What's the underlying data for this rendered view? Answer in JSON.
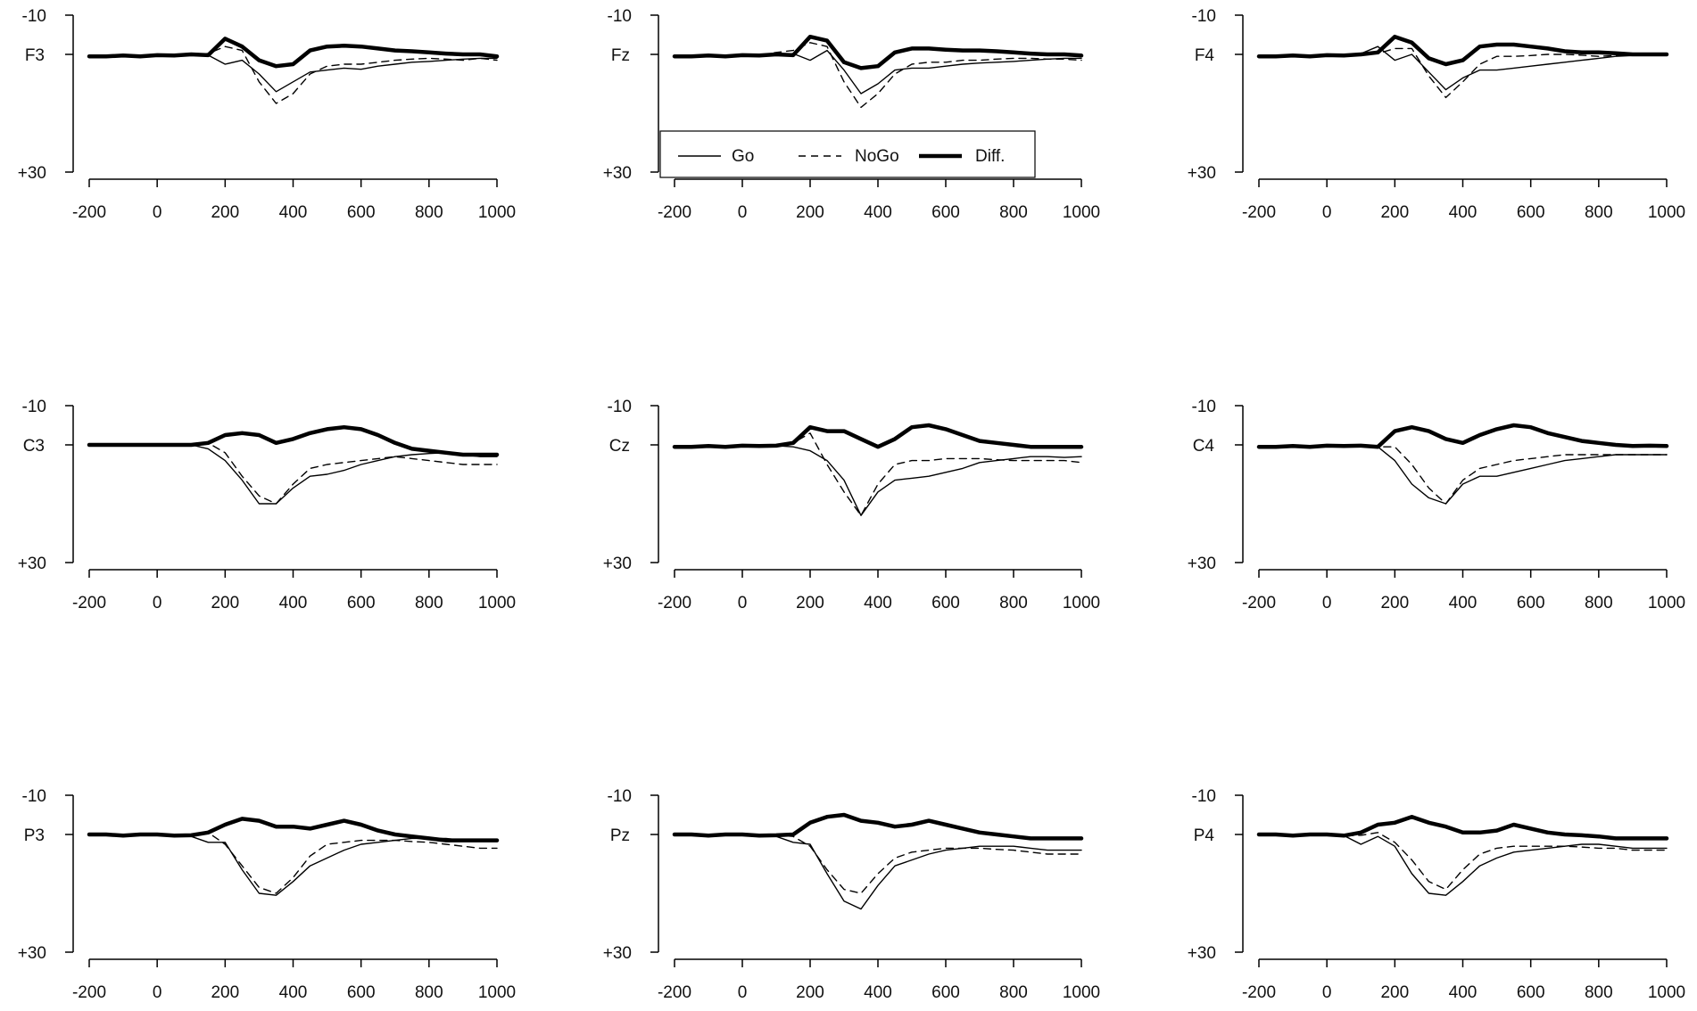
{
  "chart_data": {
    "type": "line",
    "x_ticks": [
      -200,
      0,
      200,
      400,
      600,
      800,
      1000
    ],
    "xlim": [
      -200,
      1000
    ],
    "y_tick_labels": [
      "-10",
      "+30"
    ],
    "ylim": [
      -10,
      30
    ],
    "y_reversed": true,
    "grid": false,
    "legend": {
      "placement": "in the Fz panel, lower left",
      "entries": [
        {
          "label": "Go",
          "style": "solid"
        },
        {
          "label": "NoGo",
          "style": "dashed"
        },
        {
          "label": "Diff.",
          "style": "thick"
        }
      ]
    },
    "x": [
      -200,
      -150,
      -100,
      -50,
      0,
      50,
      100,
      150,
      200,
      250,
      300,
      350,
      400,
      450,
      500,
      550,
      600,
      650,
      700,
      750,
      800,
      850,
      900,
      950,
      1000
    ],
    "panels": [
      {
        "channel": "F3",
        "series": [
          {
            "name": "Go",
            "values": [
              0.5,
              0.5,
              0.3,
              0.5,
              0.2,
              0.3,
              0.0,
              0.2,
              2.5,
              1.5,
              5.0,
              9.5,
              7.0,
              4.5,
              4.0,
              3.5,
              3.8,
              3.0,
              2.5,
              2.0,
              1.8,
              1.5,
              1.2,
              1.0,
              1.0
            ]
          },
          {
            "name": "NoGo",
            "values": [
              0.5,
              0.5,
              0.3,
              0.5,
              0.2,
              0.3,
              0.0,
              -0.2,
              -2.0,
              -1.0,
              7.0,
              12.5,
              10.0,
              5.0,
              3.0,
              2.5,
              2.5,
              2.0,
              1.5,
              1.2,
              1.0,
              1.2,
              1.5,
              1.0,
              1.5
            ]
          },
          {
            "name": "Diff.",
            "values": [
              0.5,
              0.5,
              0.3,
              0.5,
              0.2,
              0.3,
              0.0,
              0.2,
              -4.0,
              -2.0,
              1.5,
              3.0,
              2.5,
              -1.0,
              -2.0,
              -2.2,
              -2.0,
              -1.5,
              -1.0,
              -0.8,
              -0.5,
              -0.2,
              0.0,
              0.0,
              0.5
            ]
          }
        ]
      },
      {
        "channel": "Fz",
        "series": [
          {
            "name": "Go",
            "values": [
              0.5,
              0.5,
              0.3,
              0.5,
              0.2,
              0.3,
              0.0,
              -0.2,
              1.5,
              -1.0,
              4.0,
              10.0,
              7.5,
              4.0,
              3.5,
              3.5,
              3.0,
              2.5,
              2.2,
              2.0,
              1.8,
              1.5,
              1.2,
              1.0,
              1.0
            ]
          },
          {
            "name": "NoGo",
            "values": [
              0.5,
              0.5,
              0.3,
              0.5,
              0.2,
              0.3,
              -0.5,
              -1.0,
              -3.0,
              -2.0,
              7.0,
              13.5,
              10.0,
              5.0,
              2.5,
              2.0,
              2.0,
              1.5,
              1.5,
              1.2,
              1.0,
              1.0,
              1.2,
              1.2,
              1.5
            ]
          },
          {
            "name": "Diff.",
            "values": [
              0.5,
              0.5,
              0.3,
              0.5,
              0.2,
              0.3,
              0.0,
              0.2,
              -4.5,
              -3.5,
              2.0,
              3.5,
              3.0,
              -0.5,
              -1.5,
              -1.5,
              -1.2,
              -1.0,
              -1.0,
              -0.8,
              -0.5,
              -0.2,
              0.0,
              0.0,
              0.3
            ]
          }
        ]
      },
      {
        "channel": "F4",
        "series": [
          {
            "name": "Go",
            "values": [
              0.5,
              0.5,
              0.3,
              0.5,
              0.2,
              0.3,
              -0.2,
              -2.0,
              1.5,
              0.0,
              4.5,
              9.0,
              6.0,
              4.0,
              4.0,
              3.5,
              3.0,
              2.5,
              2.0,
              1.5,
              1.0,
              0.5,
              0.3,
              0.2,
              0.2
            ]
          },
          {
            "name": "NoGo",
            "values": [
              0.5,
              0.5,
              0.3,
              0.5,
              0.2,
              0.3,
              0.0,
              -0.2,
              -1.5,
              -1.5,
              5.5,
              11.0,
              7.0,
              2.5,
              0.5,
              0.5,
              0.3,
              0.0,
              0.0,
              0.2,
              0.5,
              0.3,
              0.2,
              0.2,
              0.2
            ]
          },
          {
            "name": "Diff.",
            "values": [
              0.5,
              0.5,
              0.3,
              0.5,
              0.2,
              0.3,
              0.0,
              -0.5,
              -4.5,
              -3.0,
              1.0,
              2.5,
              1.5,
              -2.0,
              -2.5,
              -2.5,
              -2.0,
              -1.5,
              -0.8,
              -0.5,
              -0.5,
              -0.3,
              0.0,
              0.0,
              0.0
            ]
          }
        ]
      },
      {
        "channel": "C3",
        "series": [
          {
            "name": "Go",
            "values": [
              0.0,
              0.0,
              0.0,
              0.0,
              0.0,
              0.0,
              0.0,
              1.0,
              4.0,
              9.0,
              15.0,
              15.0,
              11.0,
              8.0,
              7.5,
              6.5,
              5.0,
              4.0,
              3.0,
              2.5,
              2.2,
              2.0,
              2.5,
              3.0,
              3.0
            ]
          },
          {
            "name": "NoGo",
            "values": [
              0.0,
              0.0,
              0.0,
              0.0,
              0.0,
              0.0,
              0.0,
              -0.5,
              2.0,
              8.0,
              13.0,
              15.0,
              10.0,
              6.0,
              5.0,
              4.5,
              4.0,
              3.5,
              3.0,
              3.5,
              4.0,
              4.5,
              5.0,
              5.0,
              5.0
            ]
          },
          {
            "name": "Diff.",
            "values": [
              0.0,
              0.0,
              0.0,
              0.0,
              0.0,
              0.0,
              0.0,
              -0.5,
              -2.5,
              -3.0,
              -2.5,
              -0.5,
              -1.5,
              -3.0,
              -4.0,
              -4.5,
              -4.0,
              -2.5,
              -0.5,
              1.0,
              1.5,
              2.0,
              2.5,
              2.5,
              2.5
            ]
          }
        ]
      },
      {
        "channel": "Cz",
        "series": [
          {
            "name": "Go",
            "values": [
              0.5,
              0.5,
              0.3,
              0.5,
              0.2,
              0.3,
              0.2,
              0.5,
              1.5,
              4.0,
              9.0,
              18.0,
              12.0,
              9.0,
              8.5,
              8.0,
              7.0,
              6.0,
              4.5,
              4.0,
              3.5,
              3.0,
              3.0,
              3.2,
              3.0
            ]
          },
          {
            "name": "NoGo",
            "values": [
              0.5,
              0.5,
              0.3,
              0.5,
              0.2,
              0.3,
              0.2,
              -0.5,
              -3.0,
              5.0,
              12.0,
              18.0,
              10.0,
              5.0,
              4.0,
              4.0,
              3.5,
              3.5,
              3.5,
              3.8,
              4.0,
              4.0,
              4.0,
              4.0,
              4.5
            ]
          },
          {
            "name": "Diff.",
            "values": [
              0.5,
              0.5,
              0.3,
              0.5,
              0.2,
              0.3,
              0.2,
              -0.5,
              -4.5,
              -3.5,
              -3.5,
              -1.5,
              0.5,
              -1.5,
              -4.5,
              -5.0,
              -4.0,
              -2.5,
              -1.0,
              -0.5,
              0.0,
              0.5,
              0.5,
              0.5,
              0.5
            ]
          }
        ]
      },
      {
        "channel": "C4",
        "series": [
          {
            "name": "Go",
            "values": [
              0.5,
              0.5,
              0.3,
              0.5,
              0.2,
              0.3,
              0.2,
              0.5,
              4.0,
              10.0,
              13.5,
              15.0,
              10.0,
              8.0,
              8.0,
              7.0,
              6.0,
              5.0,
              4.0,
              3.5,
              3.0,
              2.5,
              2.5,
              2.5,
              2.5
            ]
          },
          {
            "name": "NoGo",
            "values": [
              0.5,
              0.5,
              0.3,
              0.5,
              0.2,
              0.3,
              0.2,
              0.5,
              0.5,
              5.0,
              11.0,
              15.0,
              9.0,
              6.0,
              5.0,
              4.0,
              3.5,
              3.0,
              2.5,
              2.5,
              2.5,
              2.5,
              2.5,
              2.5,
              2.5
            ]
          },
          {
            "name": "Diff.",
            "values": [
              0.5,
              0.5,
              0.3,
              0.5,
              0.2,
              0.3,
              0.2,
              0.5,
              -3.5,
              -4.5,
              -3.5,
              -1.5,
              -0.5,
              -2.5,
              -4.0,
              -5.0,
              -4.5,
              -3.0,
              -2.0,
              -1.0,
              -0.5,
              0.0,
              0.3,
              0.2,
              0.3
            ]
          }
        ]
      },
      {
        "channel": "P3",
        "series": [
          {
            "name": "Go",
            "values": [
              0.0,
              0.0,
              0.3,
              0.0,
              0.0,
              0.3,
              0.5,
              2.0,
              2.0,
              9.0,
              15.0,
              15.5,
              12.0,
              8.0,
              6.0,
              4.0,
              2.5,
              2.0,
              1.5,
              1.0,
              1.0,
              1.0,
              1.5,
              1.5,
              1.5
            ]
          },
          {
            "name": "NoGo",
            "values": [
              0.0,
              0.0,
              0.3,
              0.0,
              0.0,
              0.3,
              0.2,
              -0.5,
              2.5,
              8.0,
              13.5,
              15.0,
              11.0,
              5.5,
              2.5,
              2.0,
              1.5,
              1.5,
              1.5,
              1.8,
              2.0,
              2.5,
              3.0,
              3.5,
              3.5
            ]
          },
          {
            "name": "Diff.",
            "values": [
              0.0,
              0.0,
              0.3,
              0.0,
              0.0,
              0.3,
              0.2,
              -0.5,
              -2.5,
              -4.0,
              -3.5,
              -2.0,
              -2.0,
              -1.5,
              -2.5,
              -3.5,
              -2.5,
              -1.0,
              0.0,
              0.5,
              1.0,
              1.5,
              1.5,
              1.5,
              1.5
            ]
          }
        ]
      },
      {
        "channel": "Pz",
        "series": [
          {
            "name": "Go",
            "values": [
              0.0,
              0.0,
              0.3,
              0.0,
              0.0,
              0.3,
              0.5,
              2.0,
              2.5,
              10.0,
              17.0,
              19.0,
              13.0,
              8.0,
              6.5,
              5.0,
              4.0,
              3.5,
              3.0,
              3.0,
              3.0,
              3.5,
              4.0,
              4.0,
              4.0
            ]
          },
          {
            "name": "NoGo",
            "values": [
              0.0,
              0.0,
              0.3,
              0.0,
              0.0,
              0.3,
              0.2,
              0.5,
              3.0,
              9.0,
              14.0,
              15.0,
              10.0,
              6.0,
              4.5,
              4.0,
              3.5,
              3.5,
              3.5,
              3.8,
              4.0,
              4.5,
              5.0,
              5.0,
              5.0
            ]
          },
          {
            "name": "Diff.",
            "values": [
              0.0,
              0.0,
              0.3,
              0.0,
              0.0,
              0.3,
              0.2,
              0.0,
              -3.0,
              -4.5,
              -5.0,
              -3.5,
              -3.0,
              -2.0,
              -2.5,
              -3.5,
              -2.5,
              -1.5,
              -0.5,
              0.0,
              0.5,
              1.0,
              1.0,
              1.0,
              1.0
            ]
          }
        ]
      },
      {
        "channel": "P4",
        "series": [
          {
            "name": "Go",
            "values": [
              0.0,
              0.0,
              0.3,
              0.0,
              0.0,
              0.3,
              2.5,
              0.5,
              3.0,
              10.0,
              15.0,
              15.5,
              12.0,
              8.0,
              6.0,
              4.5,
              4.0,
              3.5,
              3.0,
              2.5,
              2.5,
              3.0,
              3.5,
              3.5,
              3.5
            ]
          },
          {
            "name": "NoGo",
            "values": [
              0.0,
              0.0,
              0.3,
              0.0,
              0.0,
              0.3,
              0.2,
              -0.5,
              2.0,
              6.5,
              12.0,
              14.0,
              9.0,
              5.0,
              3.5,
              3.0,
              3.0,
              3.0,
              3.0,
              3.2,
              3.5,
              3.5,
              4.0,
              4.0,
              4.0
            ]
          },
          {
            "name": "Diff.",
            "values": [
              0.0,
              0.0,
              0.3,
              0.0,
              0.0,
              0.3,
              -0.5,
              -2.5,
              -3.0,
              -4.5,
              -3.0,
              -2.0,
              -0.5,
              -0.5,
              -1.0,
              -2.5,
              -1.5,
              -0.5,
              0.0,
              0.2,
              0.5,
              1.0,
              1.0,
              1.0,
              1.0
            ]
          }
        ]
      }
    ]
  }
}
